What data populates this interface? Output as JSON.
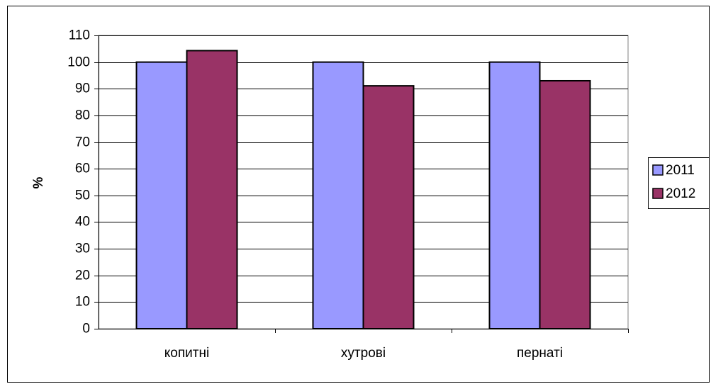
{
  "chart_data": {
    "type": "bar",
    "title": "",
    "xlabel": "",
    "ylabel": "%",
    "categories": [
      "копитні",
      "хутрові",
      "пернаті"
    ],
    "series": [
      {
        "name": "2011",
        "values": [
          100,
          100,
          100
        ],
        "color": "#9999FF"
      },
      {
        "name": "2012",
        "values": [
          104.3,
          91.1,
          93.0
        ],
        "color": "#993366"
      }
    ],
    "ylim": [
      0,
      110
    ],
    "yticks": [
      "0",
      "10",
      "20",
      "30",
      "40",
      "50",
      "60",
      "70",
      "80",
      "90",
      "100",
      "110"
    ],
    "grid": true,
    "legend_position": "right"
  }
}
